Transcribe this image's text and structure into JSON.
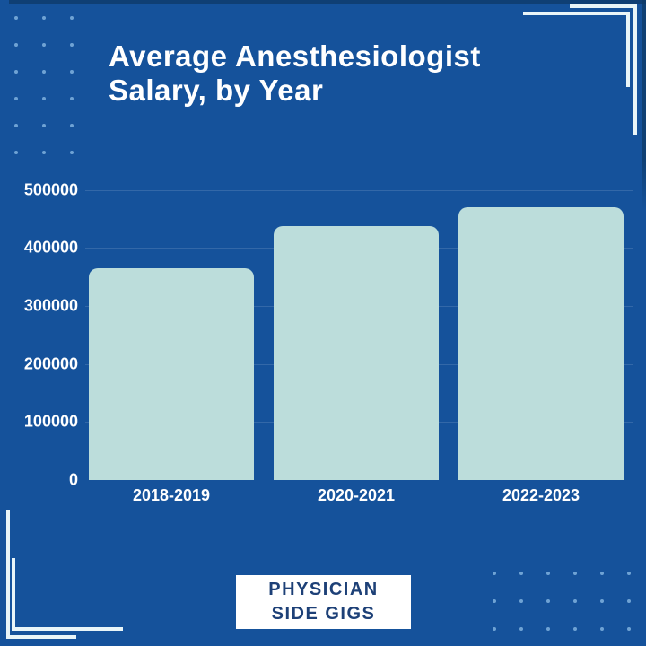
{
  "page": {
    "background_color": "#15529b"
  },
  "title": {
    "text": "Average Anesthesiologist Salary, by Year",
    "line1": "Average Anesthesiologist",
    "line2": "Salary, by Year",
    "color": "#ffffff"
  },
  "chart_data": {
    "type": "bar",
    "title": "Average Anesthesiologist Salary, by Year",
    "categories": [
      "2018-2019",
      "2020-2021",
      "2022-2023"
    ],
    "values": [
      365000,
      437000,
      470000
    ],
    "xlabel": "",
    "ylabel": "",
    "ylim": [
      0,
      500000
    ],
    "ytick_values": [
      0,
      100000,
      200000,
      300000,
      400000,
      500000
    ],
    "ytick_labels": [
      "0",
      "100000",
      "200000",
      "300000",
      "400000",
      "500000"
    ],
    "grid": true,
    "legend": false,
    "bar_color": "#bcdddb",
    "axis_text_color": "#ffffff"
  },
  "badge": {
    "line1": "PHYSICIAN",
    "line2": "SIDE GIGS",
    "background": "#ffffff",
    "text_color": "#1d4077"
  },
  "decorations": {
    "dot_color": "#6fa3d4",
    "bracket_color": "#e9f5f8"
  }
}
